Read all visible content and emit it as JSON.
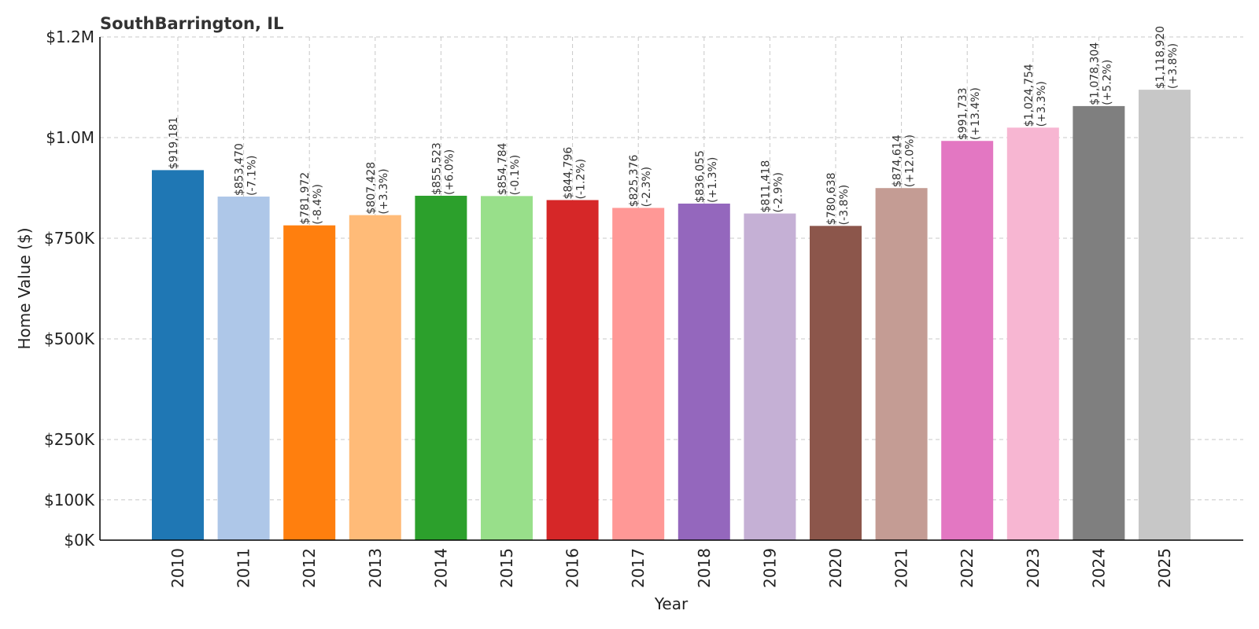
{
  "chart_data": {
    "type": "bar",
    "title": "SouthBarrington, IL",
    "xlabel": "Year",
    "ylabel": "Home Value ($)",
    "ylim": [
      0,
      1250000
    ],
    "yticks": [
      {
        "value": 0,
        "label": "$0K"
      },
      {
        "value": 100000,
        "label": "$100K"
      },
      {
        "value": 250000,
        "label": "$250K"
      },
      {
        "value": 500000,
        "label": "$500K"
      },
      {
        "value": 750000,
        "label": "$750K"
      },
      {
        "value": 1000000,
        "label": "$1.0M"
      },
      {
        "value": 1250000,
        "label": "$1.2M"
      }
    ],
    "grid": true,
    "bars": [
      {
        "category": "2010",
        "value": 919181,
        "label": "$919,181",
        "change": "",
        "color": "#1f77b4"
      },
      {
        "category": "2011",
        "value": 853470,
        "label": "$853,470",
        "change": "(-7.1%)",
        "color": "#aec7e8"
      },
      {
        "category": "2012",
        "value": 781972,
        "label": "$781,972",
        "change": "(-8.4%)",
        "color": "#ff7f0e"
      },
      {
        "category": "2013",
        "value": 807428,
        "label": "$807,428",
        "change": "(+3.3%)",
        "color": "#ffbb78"
      },
      {
        "category": "2014",
        "value": 855523,
        "label": "$855,523",
        "change": "(+6.0%)",
        "color": "#2ca02c"
      },
      {
        "category": "2015",
        "value": 854784,
        "label": "$854,784",
        "change": "(-0.1%)",
        "color": "#98df8a"
      },
      {
        "category": "2016",
        "value": 844796,
        "label": "$844,796",
        "change": "(-1.2%)",
        "color": "#d62728"
      },
      {
        "category": "2017",
        "value": 825376,
        "label": "$825,376",
        "change": "(-2.3%)",
        "color": "#ff9896"
      },
      {
        "category": "2018",
        "value": 836055,
        "label": "$836,055",
        "change": "(+1.3%)",
        "color": "#9467bd"
      },
      {
        "category": "2019",
        "value": 811418,
        "label": "$811,418",
        "change": "(-2.9%)",
        "color": "#c5b0d5"
      },
      {
        "category": "2020",
        "value": 780638,
        "label": "$780,638",
        "change": "(-3.8%)",
        "color": "#8c564b"
      },
      {
        "category": "2021",
        "value": 874614,
        "label": "$874,614",
        "change": "(+12.0%)",
        "color": "#c49c94"
      },
      {
        "category": "2022",
        "value": 991733,
        "label": "$991,733",
        "change": "(+13.4%)",
        "color": "#e377c2"
      },
      {
        "category": "2023",
        "value": 1024754,
        "label": "$1,024,754",
        "change": "(+3.3%)",
        "color": "#f7b6d2"
      },
      {
        "category": "2024",
        "value": 1078304,
        "label": "$1,078,304",
        "change": "(+5.2%)",
        "color": "#7f7f7f"
      },
      {
        "category": "2025",
        "value": 1118920,
        "label": "$1,118,920",
        "change": "(+3.8%)",
        "color": "#c7c7c7"
      }
    ]
  }
}
